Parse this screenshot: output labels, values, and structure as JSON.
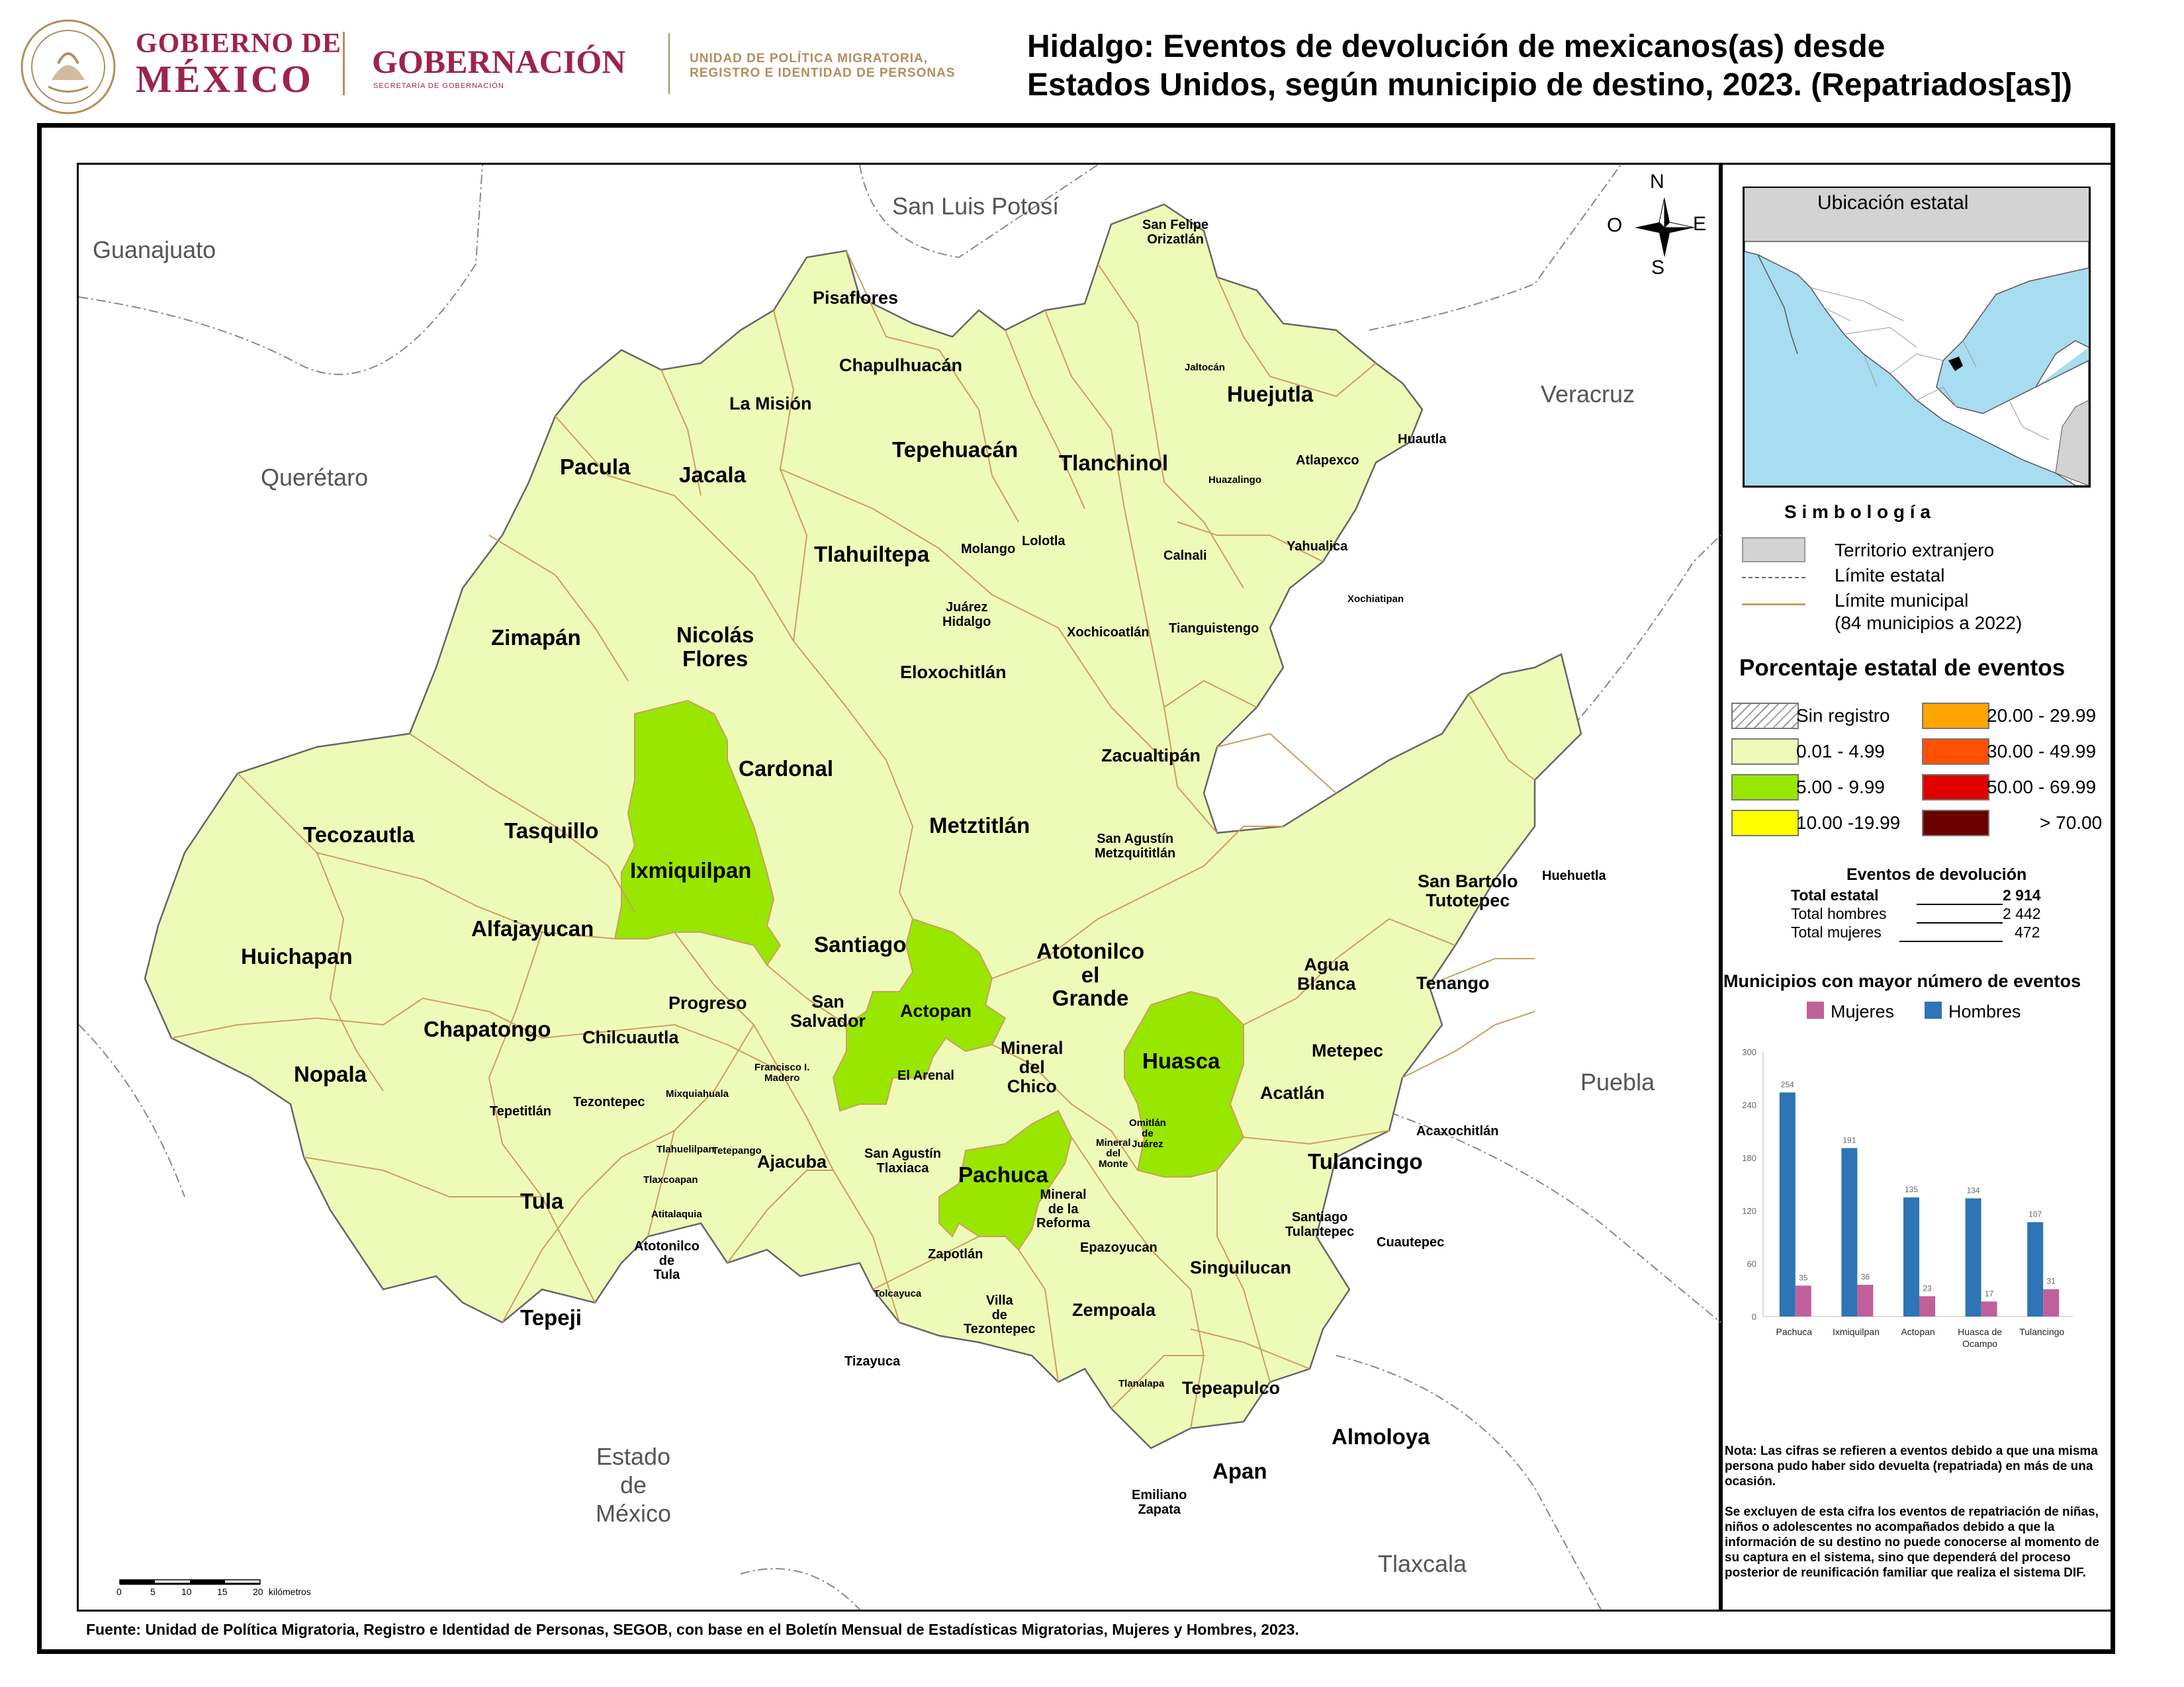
{
  "header": {
    "gob_line1": "GOBIERNO DE",
    "gob_line2": "MÉXICO",
    "seal_text": "ESTADOS UNIDOS MEXICANOS",
    "gobernacion": "GOBERNACIÓN",
    "gobernacion_sub": "SECRETARÍA DE GOBERNACIÓN",
    "unit_line1": "UNIDAD DE POLÍTICA MIGRATORIA,",
    "unit_line2": "REGISTRO E IDENTIDAD DE PERSONAS",
    "title_line1": "Hidalgo: Eventos de devolución de mexicanos(as) desde",
    "title_line2": "Estados Unidos, según municipio de destino, 2023. (Repatriados[as])"
  },
  "colors": {
    "light": "#eefab8",
    "mid": "#99e600",
    "border_muni": "#c8a060",
    "inset_land": "#d3d3d3",
    "inset_sea": "#a8dcf0",
    "bar_men": "#2e75b6",
    "bar_women": "#c0609a",
    "brand": "#9d2449",
    "gold": "#b38e5d"
  },
  "map": {
    "compass": {
      "n": "N",
      "s": "S",
      "e": "E",
      "o": "O"
    },
    "neighbors": {
      "guanajuato": "Guanajuato",
      "slp": "San Luis Potosí",
      "queretaro": "Querétaro",
      "veracruz": "Veracruz",
      "puebla": "Puebla",
      "edomex": "Estado\nde\nMéxico",
      "tlaxcala": "Tlaxcala"
    },
    "municipalities": {
      "san_felipe": "San Felipe\nOrizatlán",
      "pisaflores": "Pisaflores",
      "chapulhuacan": "Chapulhuacán",
      "la_mision": "La Misión",
      "jaltocan": "Jaltocán",
      "huejutla": "Huejutla",
      "pacula": "Pacula",
      "jacala": "Jacala",
      "tepehuacan": "Tepehuacán",
      "tlanchinol": "Tlanchinol",
      "huautla": "Huautla",
      "atlapexco": "Atlapexco",
      "huazalingo": "Huazalingo",
      "molango": "Molango",
      "lolotla": "Lolotla",
      "tlahuiltepa": "Tlahuiltepa",
      "calnali": "Calnali",
      "yahualica": "Yahualica",
      "xochiatipan": "Xochiatipan",
      "juarez": "Juárez\nHidalgo",
      "zimapan": "Zimapán",
      "nicolas_flores": "Nicolás\nFlores",
      "xochicoatlan": "Xochicoatlán",
      "tianguistengo": "Tianguistengo",
      "eloxochitlan": "Eloxochitlán",
      "cardonal": "Cardonal",
      "zacualtipan": "Zacualtipán",
      "tecozautla": "Tecozautla",
      "tasquillo": "Tasquillo",
      "metztitlan": "Metztitlán",
      "san_agustin_m": "San Agustín\nMetzquititlán",
      "ixmiquilpan": "Ixmiquilpan",
      "san_bartolo": "San Bartolo\nTutotepec",
      "huehuetla": "Huehuetla",
      "alfajayucan": "Alfajayucan",
      "huichapan": "Huichapan",
      "santiago": "Santiago",
      "atotonilco": "Atotonilco\nel\nGrande",
      "agua_blanca": "Agua\nBlanca",
      "tenango": "Tenango",
      "progreso": "Progreso",
      "san_salvador": "San\nSalvador",
      "actopan": "Actopan",
      "chapantongo": "Chapatongo",
      "chilcuautla": "Chilcuautla",
      "mineral_chico": "Mineral\ndel\nChico",
      "huasca": "Huasca",
      "metepec": "Metepec",
      "nopala": "Nopala",
      "francisco": "Francisco I.\nMadero",
      "el_arenal": "El Arenal",
      "acatlan": "Acatlán",
      "tepetitlan": "Tepetitlán",
      "tezontepec": "Tezontepec",
      "mixquiahuala": "Mixquiahuala",
      "omitlan": "Omitlán\nde\nJuárez",
      "mineral_monte": "Mineral\ndel\nMonte",
      "acaxochitlan": "Acaxochitlán",
      "tlahuelilpan": "Tlahuelilpan",
      "tetepango": "Tetepango",
      "ajacuba": "Ajacuba",
      "san_agustin_t": "San Agustín\nTlaxiaca",
      "pachuca": "Pachuca",
      "tulancingo": "Tulancingo",
      "tlaxcoapan": "Tlaxcoapan",
      "tula": "Tula",
      "mineral_reforma": "Mineral\nde la\nReforma",
      "santiago_t": "Santiago\nTulantepec",
      "atitalaquia": "Atitalaquia",
      "cuautepec": "Cuautepec",
      "atotonilco_tula": "Atotonilco\nde\nTula",
      "epazoyucan": "Epazoyucan",
      "zapotlan": "Zapotlán",
      "singuilucan": "Singuilucan",
      "tolcayuca": "Tolcayuca",
      "villa_tezontepec": "Villa\nde\nTezontepec",
      "zempoala": "Zempoala",
      "tepeji": "Tepeji",
      "tizayuca": "Tizayuca",
      "tlanalapa": "Tlanalapa",
      "tepeapulco": "Tepeapulco",
      "almoloya": "Almoloya",
      "apan": "Apan",
      "emiliano": "Emiliano\nZapata"
    },
    "scale": {
      "ticks": [
        "0",
        "5",
        "10",
        "15",
        "20"
      ],
      "unit": "kilómetros"
    }
  },
  "inset": {
    "title": "Ubicación estatal"
  },
  "legend": {
    "title": "S i m b o l o g í a",
    "foreign": "Territorio extranjero",
    "state_limit": "Límite estatal",
    "muni_limit": "Límite municipal",
    "muni_note": "(84 municipios a 2022)",
    "pct_title": "Porcentaje estatal de eventos",
    "classes": [
      {
        "label": "Sin registro",
        "color": "hatch"
      },
      {
        "label": "0.01  - 4.99",
        "color": "#eefab8"
      },
      {
        "label": "5.00  - 9.99",
        "color": "#99e600"
      },
      {
        "label": "10.00 -19.99",
        "color": "#ffff00"
      },
      {
        "label": "20.00 - 29.99",
        "color": "#ffa500"
      },
      {
        "label": "30.00 - 49.99",
        "color": "#ff5000"
      },
      {
        "label": "50.00 - 69.99",
        "color": "#e00000"
      },
      {
        "label": "> 70.00",
        "color": "#6b0000"
      }
    ]
  },
  "totals": {
    "title": "Eventos de devolución",
    "rows": [
      {
        "label": "Total estatal",
        "value": "2 914"
      },
      {
        "label": "Total hombres",
        "value": "2 442"
      },
      {
        "label": "Total mujeres",
        "value": "472"
      }
    ]
  },
  "bar_chart_meta": {
    "title": "Municipios con mayor número de eventos",
    "legend_women": "Mujeres",
    "legend_men": "Hombres"
  },
  "chart_data": {
    "type": "bar",
    "title": "Municipios con mayor número de eventos",
    "categories": [
      "Pachuca",
      "Ixmiquilpan",
      "Actopan",
      "Huasca de\nOcampo",
      "Tulancingo"
    ],
    "series": [
      {
        "name": "Hombres",
        "values": [
          254,
          191,
          135,
          134,
          107
        ]
      },
      {
        "name": "Mujeres",
        "values": [
          35,
          36,
          23,
          17,
          31
        ]
      }
    ],
    "yticks": [
      0,
      60,
      120,
      180,
      240,
      300
    ],
    "ylim": [
      0,
      300
    ],
    "grid": false,
    "legend_position": "top"
  },
  "notes": {
    "n1": "Nota: Las cifras se refieren a eventos debido a que una misma persona pudo haber sido devuelta (repatriada) en más de una ocasión.",
    "n2": "Se excluyen de esta cifra los eventos de repatriación de niñas, niños o adolescentes no acompañados debido a que la información de su destino no puede conocerse al momento de su captura en el sistema, sino que dependerá del proceso posterior de reunificación familiar que realiza el sistema DIF."
  },
  "footer": {
    "source": "Fuente: Unidad de Política Migratoria, Registro e Identidad de Personas, SEGOB, con base en el Boletín Mensual de Estadísticas Migratorias, Mujeres y Hombres, 2023."
  }
}
